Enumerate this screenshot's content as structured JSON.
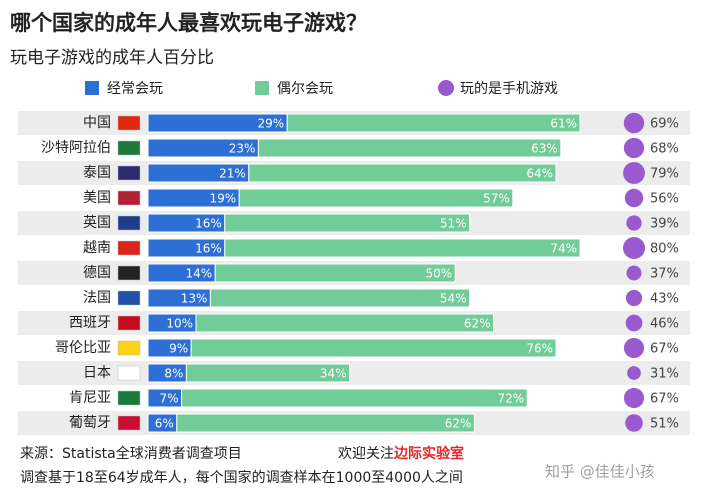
{
  "chart_data": {
    "type": "stacked-bar-bubble",
    "title": "哪个国家的成年人最喜欢玩电子游戏？",
    "subtitle": "玩电子游戏的成年人百分比",
    "categories": [
      "中国",
      "沙特阿拉伯",
      "泰国",
      "美国",
      "英国",
      "越南",
      "德国",
      "法国",
      "西班牙",
      "哥伦比亚",
      "日本",
      "肯尼亚",
      "葡萄牙"
    ],
    "series": [
      {
        "name": "经常会玩",
        "color": "#2d6fd4",
        "values": [
          29,
          23,
          21,
          19,
          16,
          16,
          14,
          13,
          10,
          9,
          8,
          7,
          6
        ],
        "value_labels": [
          "29%",
          "23%",
          "21%",
          "19%",
          "16%",
          "16%",
          "14%",
          "13%",
          "10%",
          "9%",
          "8%",
          "7%",
          "6%"
        ]
      },
      {
        "name": "偶尔会玩",
        "color": "#72cc98",
        "values": [
          61,
          63,
          64,
          57,
          51,
          74,
          50,
          54,
          62,
          76,
          34,
          72,
          62
        ],
        "value_labels": [
          "61%",
          "63%",
          "64%",
          "57%",
          "51%",
          "74%",
          "50%",
          "54%",
          "62%",
          "76%",
          "34%",
          "72%",
          "62%"
        ]
      }
    ],
    "bubble_series": {
      "name": "玩的是手机游戏",
      "color": "#9b59d0",
      "values": [
        69,
        68,
        79,
        56,
        39,
        80,
        37,
        43,
        46,
        67,
        31,
        67,
        51
      ],
      "value_labels": [
        "69%",
        "68%",
        "79%",
        "56%",
        "39%",
        "80%",
        "37%",
        "43%",
        "46%",
        "67%",
        "31%",
        "67%",
        "51%"
      ]
    },
    "source": "来源：Statista全球消费者调查项目",
    "promo": "欢迎关注",
    "promo_highlight": "边际实验室",
    "note": "调查基于18至64岁成年人，每个国家的调查样本在1000至4000人之间",
    "watermark": "知乎 @佳佳小孩"
  }
}
